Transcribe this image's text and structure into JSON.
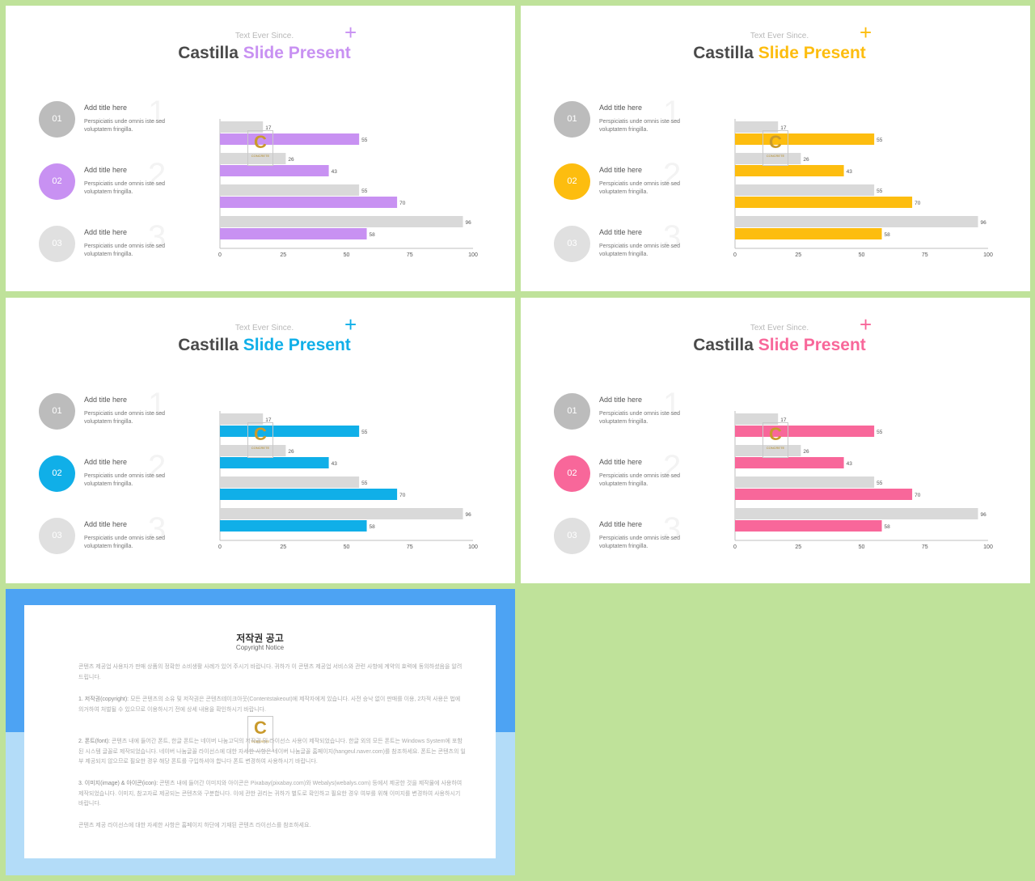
{
  "slides": [
    {
      "accent": "#c891f2"
    },
    {
      "accent": "#fdbd0f"
    },
    {
      "accent": "#10afe8"
    },
    {
      "accent": "#f8679a"
    }
  ],
  "slide_text": {
    "subtitle": "Text Ever Since.",
    "title_part1": "Castilla ",
    "title_part2": "Slide Present",
    "plus": "+",
    "items": [
      {
        "num": "01",
        "big": "1",
        "title": "Add title here",
        "desc": "Perspiciatis unde omnis iste sed voluptatem fringilla."
      },
      {
        "num": "02",
        "big": "2",
        "title": "Add title here",
        "desc": "Perspiciatis unde omnis iste sed voluptatem fringilla."
      },
      {
        "num": "03",
        "big": "3",
        "title": "Add title here",
        "desc": "Perspiciatis unde omnis iste sed voluptatem fringilla."
      }
    ]
  },
  "logo": {
    "letter": "C",
    "caption": "CONCRETE"
  },
  "chart_data": {
    "type": "bar",
    "orientation": "horizontal",
    "series": [
      {
        "values": [
          17,
          26,
          55,
          96
        ],
        "color": "#d9d9d9"
      },
      {
        "values": [
          55,
          43,
          70,
          58
        ],
        "color": "accent"
      }
    ],
    "xlim": [
      0,
      100
    ],
    "xticks": [
      0,
      25,
      50,
      75,
      100
    ]
  },
  "notice": {
    "title": "저작권 공고",
    "subtitle": "Copyright Notice",
    "p1": "콘텐츠 제공업 사용자가 판매 상품의 정확한 소비생활 사례가 있어 주시기 바랍니다. 귀하가 이 콘텐츠 제공업 서비스와 관련 사항에 계약의 효력에 동의하셨음을 알려드립니다.",
    "p2_head": "1. 저작권(copyright): ",
    "p2": "모든 콘텐츠의 소유 및 저작권은 콘텐츠테이크아웃(Contentstakeout)에 제작자에게 있습니다. 사전 승낙 없이 판매를 이용, 2차적 사용은 법에 의거하여 처벌될 수 있으므로 이용하시기 전에 상세 내용을 확인하시기 바랍니다.",
    "p3_head": "2. 폰트(font): ",
    "p3": "콘텐츠 내에 들어간 폰트, 한글 폰트는 네이버 나눔고딕의 저작권 및 라이선스 사용이 제작되었습니다. 한글 외의 모든 폰트는 Windows System에 포함된 시스템 글꼴로 제작되었습니다. 네이버 나눔글꼴 라이선스에 대한 자세한 사항은 네이버 나눔글꼴 홈페이지(hangeul.naver.com)를 참조하세요. 폰트는 콘텐츠의 일부 제공되지 않으므로 필요한 경우 해당 폰트를 구입하셔야 합니다 폰트 변경하여 사용하시기 바랍니다.",
    "p4_head": "3. 이미지(image) & 아이콘(icon): ",
    "p4": "콘텐츠 내에 들어간 이미지와 아이콘은 Pixabay(pixabay.com)와 Webalys(webalys.com) 등에서 제공한 것을 제작물에 사용하여 제작되었습니다. 이미지, 참고자료 제공되는 콘텐츠와 구분합니다. 이에 관한 권리는 귀하가 별도로 확인하고 필요한 경우 여부를 위해 이미지를 변경하여 사용하시기 바랍니다.",
    "p5": "콘텐츠 제공 라이선스에 대한 자세한 사항은 홈페이지 하단에 기재된 콘텐츠 라이선스를 참조하세요."
  }
}
